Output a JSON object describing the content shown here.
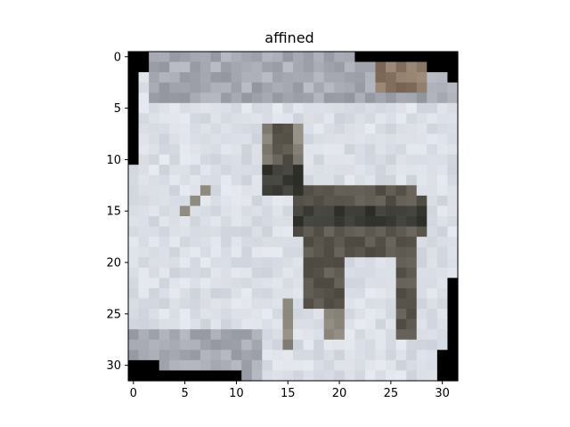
{
  "title": "affined",
  "image": {
    "description_icon": "deer-in-snow-image",
    "grid_size": 32,
    "palette": {
      "background": "#ffffff",
      "snow": "#d5d9e2",
      "snow_light": "#e0e3ea",
      "border": "#000000",
      "deer_dark": "#3a3a34",
      "deer_mid": "#5b574e",
      "deer_light": "#8a857b",
      "top_band": "#a7aab3",
      "brown": "#8a7766"
    }
  },
  "axes": {
    "xticks": [
      "0",
      "5",
      "10",
      "15",
      "20",
      "25",
      "30"
    ],
    "yticks": [
      "0",
      "5",
      "10",
      "15",
      "20",
      "25",
      "30"
    ],
    "xlim": [
      -0.5,
      31.5
    ],
    "ylim": [
      31.5,
      -0.5
    ]
  }
}
